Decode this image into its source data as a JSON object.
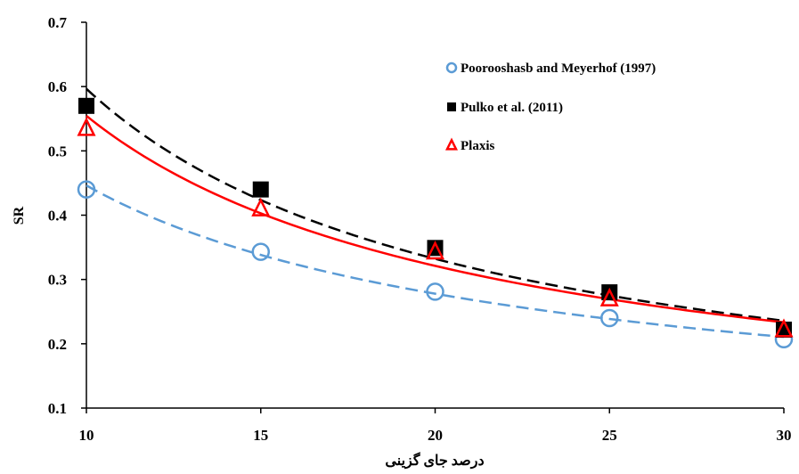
{
  "chart_data": {
    "type": "scatter",
    "title": "",
    "xlabel": "درصد جای گزینی",
    "ylabel": "SR",
    "xlim": [
      10,
      30
    ],
    "ylim": [
      0.1,
      0.7
    ],
    "xticks": [
      "10",
      "15",
      "20",
      "25",
      "30"
    ],
    "yticks": [
      "0.1",
      "0.2",
      "0.3",
      "0.4",
      "0.5",
      "0.6",
      "0.7"
    ],
    "grid": false,
    "legend_position": "right",
    "series": [
      {
        "name": "Poorooshasb and Meyerhof (1997)",
        "marker": "circle",
        "color": "#5b9bd5",
        "trendline": "dashed",
        "x": [
          10,
          15,
          20,
          25,
          30
        ],
        "y": [
          0.44,
          0.343,
          0.281,
          0.24,
          0.207
        ]
      },
      {
        "name": "Pulko et al. (2011)",
        "marker": "square",
        "color": "#000000",
        "trendline": "dashed",
        "x": [
          10,
          15,
          20,
          25,
          30
        ],
        "y": [
          0.57,
          0.44,
          0.349,
          0.28,
          0.222
        ]
      },
      {
        "name": "Plaxis",
        "marker": "triangle",
        "color": "#ff0000",
        "trendline": "solid",
        "x": [
          10,
          15,
          20,
          25,
          30
        ],
        "y": [
          0.535,
          0.41,
          0.343,
          0.27,
          0.222
        ]
      }
    ]
  }
}
